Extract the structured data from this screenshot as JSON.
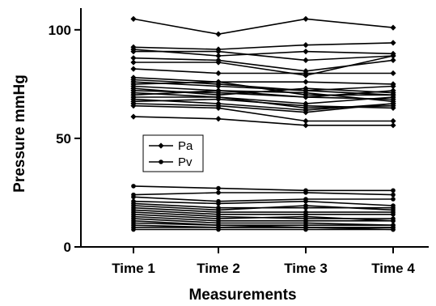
{
  "chart_data": {
    "type": "line",
    "title": "",
    "xlabel": "Measurements",
    "ylabel": "Pressure mmHg",
    "categories": [
      "Time 1",
      "Time 2",
      "Time 3",
      "Time 4"
    ],
    "ylim": [
      0,
      110
    ],
    "yticks": [
      0,
      50,
      100
    ],
    "grid": false,
    "legend_placement": "center-left",
    "legend": [
      "Pa",
      "Pv"
    ],
    "colors": {
      "line": "#000000",
      "marker": "#000000"
    },
    "series": [
      {
        "group": "Pa",
        "values": [
          105,
          98,
          105,
          101
        ]
      },
      {
        "group": "Pa",
        "values": [
          92,
          91,
          93,
          94
        ]
      },
      {
        "group": "Pa",
        "values": [
          91,
          88,
          90,
          89
        ]
      },
      {
        "group": "Pa",
        "values": [
          90,
          90,
          86,
          88
        ]
      },
      {
        "group": "Pa",
        "values": [
          87,
          86,
          81,
          86
        ]
      },
      {
        "group": "Pa",
        "values": [
          85,
          85,
          79,
          88
        ]
      },
      {
        "group": "Pa",
        "values": [
          82,
          80,
          80,
          80
        ]
      },
      {
        "group": "Pa",
        "values": [
          78,
          76,
          76,
          75
        ]
      },
      {
        "group": "Pa",
        "values": [
          77,
          75,
          72,
          74
        ]
      },
      {
        "group": "Pa",
        "values": [
          76,
          74,
          72,
          70
        ]
      },
      {
        "group": "Pa",
        "values": [
          75,
          76,
          70,
          70
        ]
      },
      {
        "group": "Pa",
        "values": [
          74,
          72,
          69,
          72
        ]
      },
      {
        "group": "Pa",
        "values": [
          73,
          70,
          73,
          71
        ]
      },
      {
        "group": "Pa",
        "values": [
          72,
          71,
          69,
          68
        ]
      },
      {
        "group": "Pa",
        "values": [
          71,
          69,
          66,
          69
        ]
      },
      {
        "group": "Pa",
        "values": [
          70,
          72,
          71,
          67
        ]
      },
      {
        "group": "Pa",
        "values": [
          69,
          69,
          64,
          65
        ]
      },
      {
        "group": "Pa",
        "values": [
          68,
          66,
          63,
          66
        ]
      },
      {
        "group": "Pa",
        "values": [
          67,
          68,
          65,
          64
        ]
      },
      {
        "group": "Pa",
        "values": [
          66,
          65,
          62,
          66
        ]
      },
      {
        "group": "Pa",
        "values": [
          65,
          64,
          58,
          58
        ]
      },
      {
        "group": "Pa",
        "values": [
          60,
          59,
          56,
          56
        ]
      },
      {
        "group": "Pv",
        "values": [
          28,
          27,
          26,
          26
        ]
      },
      {
        "group": "Pv",
        "values": [
          24,
          25,
          25,
          24
        ]
      },
      {
        "group": "Pv",
        "values": [
          23,
          21,
          22,
          22
        ]
      },
      {
        "group": "Pv",
        "values": [
          21,
          20,
          21,
          19
        ]
      },
      {
        "group": "Pv",
        "values": [
          20,
          18,
          18,
          18
        ]
      },
      {
        "group": "Pv",
        "values": [
          19,
          17,
          19,
          17
        ]
      },
      {
        "group": "Pv",
        "values": [
          18,
          16,
          16,
          16
        ]
      },
      {
        "group": "Pv",
        "values": [
          17,
          15,
          15,
          15
        ]
      },
      {
        "group": "Pv",
        "values": [
          16,
          14,
          13,
          13
        ]
      },
      {
        "group": "Pv",
        "values": [
          15,
          13,
          14,
          12
        ]
      },
      {
        "group": "Pv",
        "values": [
          14,
          12,
          12,
          12
        ]
      },
      {
        "group": "Pv",
        "values": [
          13,
          11,
          11,
          10
        ]
      },
      {
        "group": "Pv",
        "values": [
          12,
          10,
          10,
          10
        ]
      },
      {
        "group": "Pv",
        "values": [
          11,
          10,
          9,
          9
        ]
      },
      {
        "group": "Pv",
        "values": [
          10,
          9,
          9,
          9
        ]
      },
      {
        "group": "Pv",
        "values": [
          9,
          9,
          9,
          8
        ]
      },
      {
        "group": "Pv",
        "values": [
          8,
          8,
          8,
          8
        ]
      }
    ]
  }
}
